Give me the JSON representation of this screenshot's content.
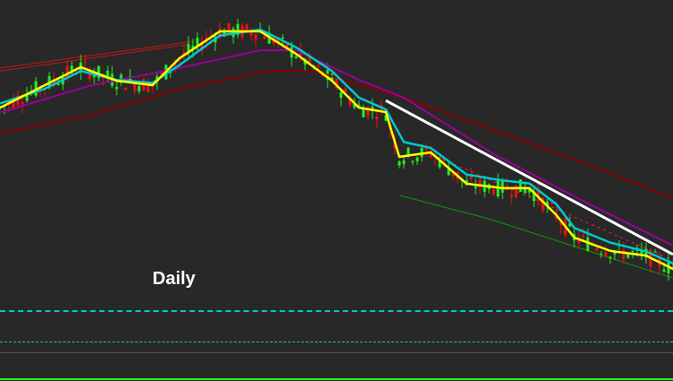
{
  "timeframe_label": "Daily",
  "colors": {
    "background": "#282828",
    "bull_candle": "#22ee22",
    "bear_candle": "#ee1111",
    "fast_ma": "#ffff00",
    "mid_ma": "#00c8d0",
    "slow_ma": "#9a009a",
    "slowest_ma": "#8b0000",
    "trendline": "#ffffff",
    "support_line": "#0f8a0f",
    "resistance_dashed": "#ff2020",
    "level_dashed": "#00c8d0",
    "level_solid": "#555555",
    "bottom_border": "#22ff22"
  },
  "chart_data": {
    "type": "candlestick",
    "grid": false,
    "axes_visible": false,
    "xlim": [
      0,
      150
    ],
    "ylim": [
      0,
      100
    ],
    "series": [
      {
        "role": "fast_ma",
        "points": [
          [
            0,
            63.6
          ],
          [
            10,
            71.2
          ],
          [
            18,
            77.3
          ],
          [
            26,
            72.7
          ],
          [
            34,
            71.2
          ],
          [
            40,
            80.3
          ],
          [
            49,
            89.4
          ],
          [
            58,
            89.4
          ],
          [
            66,
            81.8
          ],
          [
            74,
            72.7
          ],
          [
            80,
            63.6
          ],
          [
            86,
            62.1
          ],
          [
            89,
            47
          ],
          [
            96,
            48.5
          ],
          [
            104,
            37.9
          ],
          [
            112,
            36.4
          ],
          [
            118,
            36.4
          ],
          [
            124,
            27.3
          ],
          [
            128,
            19.7
          ],
          [
            136,
            15.2
          ],
          [
            144,
            13.6
          ],
          [
            150,
            9.1
          ]
        ]
      },
      {
        "role": "mid_ma",
        "points": [
          [
            0,
            65
          ],
          [
            10,
            70
          ],
          [
            18,
            76
          ],
          [
            26,
            73
          ],
          [
            34,
            72
          ],
          [
            40,
            78
          ],
          [
            49,
            88
          ],
          [
            58,
            90
          ],
          [
            66,
            84
          ],
          [
            74,
            76
          ],
          [
            80,
            67
          ],
          [
            86,
            63
          ],
          [
            90,
            52
          ],
          [
            96,
            50
          ],
          [
            104,
            41
          ],
          [
            112,
            39
          ],
          [
            118,
            38
          ],
          [
            124,
            31
          ],
          [
            128,
            23
          ],
          [
            136,
            18
          ],
          [
            144,
            15
          ],
          [
            150,
            11
          ]
        ]
      },
      {
        "role": "slow_ma",
        "points": [
          [
            0,
            62
          ],
          [
            20,
            71
          ],
          [
            40,
            77
          ],
          [
            58,
            83
          ],
          [
            66,
            83
          ],
          [
            80,
            73
          ],
          [
            90,
            67
          ],
          [
            110,
            48
          ],
          [
            130,
            32
          ],
          [
            150,
            17
          ]
        ]
      },
      {
        "role": "slowest_ma",
        "points": [
          [
            0,
            55
          ],
          [
            20,
            61
          ],
          [
            40,
            70
          ],
          [
            60,
            76
          ],
          [
            70,
            76
          ],
          [
            90,
            67
          ],
          [
            110,
            56
          ],
          [
            130,
            45
          ],
          [
            150,
            33
          ]
        ]
      }
    ],
    "trendlines": [
      {
        "role": "trendline",
        "points": [
          [
            86,
            66
          ],
          [
            150,
            14
          ]
        ]
      },
      {
        "role": "support_line",
        "points": [
          [
            89,
            34
          ],
          [
            109,
            26
          ],
          [
            150,
            6
          ]
        ]
      },
      {
        "role": "resistance_dashed",
        "points": [
          [
            96,
            48
          ],
          [
            150,
            12
          ]
        ]
      },
      {
        "role": "channel_upper",
        "points": [
          [
            0,
            77
          ],
          [
            43,
            86
          ]
        ]
      },
      {
        "role": "channel_lower",
        "points": [
          [
            0,
            76
          ],
          [
            42,
            85
          ]
        ]
      }
    ]
  }
}
